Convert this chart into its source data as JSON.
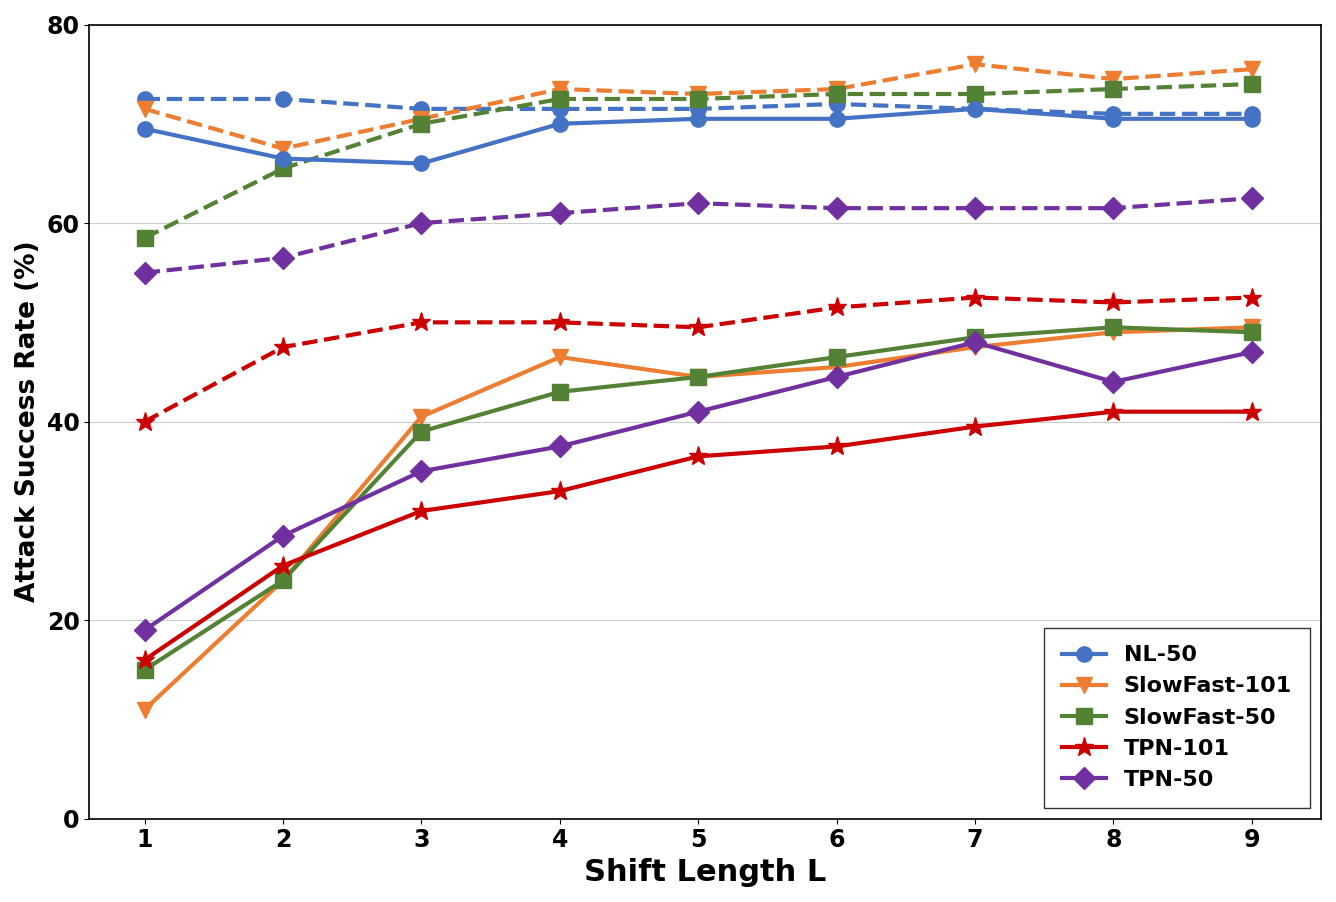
{
  "x": [
    1,
    2,
    3,
    4,
    5,
    6,
    7,
    8,
    9
  ],
  "series": [
    {
      "name": "NL-50",
      "color": "#4472c4",
      "marker": "o",
      "solid": [
        69.5,
        66.5,
        66.0,
        70.0,
        70.5,
        70.5,
        71.5,
        70.5,
        70.5
      ],
      "dashed": [
        72.5,
        72.5,
        71.5,
        71.5,
        71.5,
        72.0,
        71.5,
        71.0,
        71.0
      ]
    },
    {
      "name": "SlowFast-101",
      "color": "#ed7d31",
      "marker": "v",
      "solid": [
        11.0,
        24.0,
        40.5,
        46.5,
        44.5,
        45.5,
        47.5,
        49.0,
        49.5
      ],
      "dashed": [
        71.5,
        67.5,
        70.5,
        73.5,
        73.0,
        73.5,
        76.0,
        74.5,
        75.5
      ]
    },
    {
      "name": "SlowFast-50",
      "color": "#548235",
      "marker": "s",
      "solid": [
        15.0,
        24.0,
        39.0,
        43.0,
        44.5,
        46.5,
        48.5,
        49.5,
        49.0
      ],
      "dashed": [
        58.5,
        65.5,
        70.0,
        72.5,
        72.5,
        73.0,
        73.0,
        73.5,
        74.0
      ]
    },
    {
      "name": "TPN-101",
      "color": "#cc0000",
      "marker": "*",
      "solid": [
        16.0,
        25.5,
        31.0,
        33.0,
        36.5,
        37.5,
        39.5,
        41.0,
        41.0
      ],
      "dashed": [
        40.0,
        47.5,
        50.0,
        50.0,
        49.5,
        51.5,
        52.5,
        52.0,
        52.5
      ]
    },
    {
      "name": "TPN-50",
      "color": "#7030a0",
      "marker": "D",
      "solid": [
        19.0,
        28.5,
        35.0,
        37.5,
        41.0,
        44.5,
        48.0,
        44.0,
        47.0
      ],
      "dashed": [
        55.0,
        56.5,
        60.0,
        61.0,
        62.0,
        61.5,
        61.5,
        61.5,
        62.5
      ]
    }
  ],
  "xlabel": "Shift Length L",
  "ylabel": "Attack Success Rate (%)",
  "ylim": [
    0,
    80
  ],
  "xlim": [
    0.6,
    9.5
  ],
  "yticks": [
    0,
    20,
    40,
    60,
    80
  ],
  "xticks": [
    1,
    2,
    3,
    4,
    5,
    6,
    7,
    8,
    9
  ],
  "xlabel_fontsize": 22,
  "ylabel_fontsize": 19,
  "tick_fontsize": 17,
  "legend_fontsize": 16,
  "linewidth": 3.0,
  "markersize": 11,
  "star_markersize": 14
}
